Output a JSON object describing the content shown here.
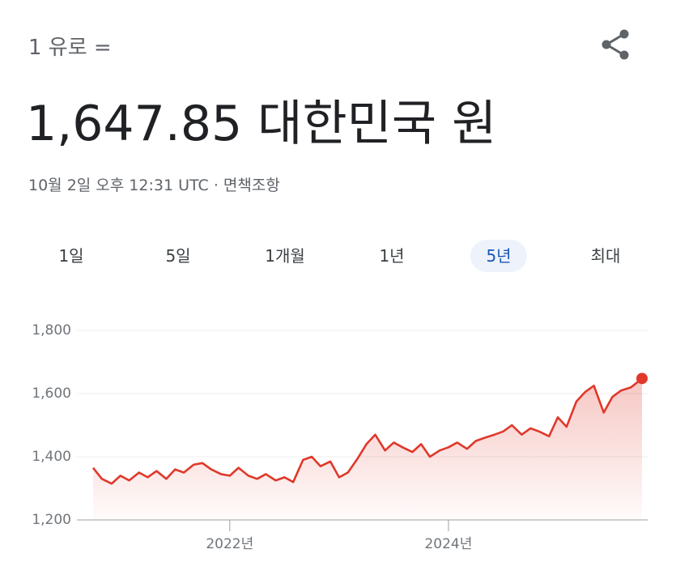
{
  "header": {
    "prefix": "1 유로 =",
    "value": "1,647.85 대한민국 원",
    "timestamp": "10월 2일 오후 12:31 UTC",
    "separator": "·",
    "disclaimer": "면책조항"
  },
  "tabs": [
    "1일",
    "5일",
    "1개월",
    "1년",
    "5년",
    "최대"
  ],
  "active_tab": 4,
  "chart_data": {
    "type": "line",
    "color": "#e0382b",
    "grid": true,
    "x": [
      2020.75,
      2020.83,
      2020.92,
      2021.0,
      2021.08,
      2021.17,
      2021.25,
      2021.33,
      2021.42,
      2021.5,
      2021.58,
      2021.67,
      2021.75,
      2021.83,
      2021.92,
      2022.0,
      2022.08,
      2022.17,
      2022.25,
      2022.33,
      2022.42,
      2022.5,
      2022.58,
      2022.67,
      2022.75,
      2022.83,
      2022.92,
      2023.0,
      2023.08,
      2023.17,
      2023.25,
      2023.33,
      2023.42,
      2023.5,
      2023.58,
      2023.67,
      2023.75,
      2023.83,
      2023.92,
      2024.0,
      2024.08,
      2024.17,
      2024.25,
      2024.33,
      2024.42,
      2024.5,
      2024.58,
      2024.67,
      2024.75,
      2024.83,
      2024.92,
      2025.0,
      2025.08,
      2025.17,
      2025.25,
      2025.33,
      2025.42,
      2025.5,
      2025.58,
      2025.67,
      2025.77
    ],
    "values": [
      1365,
      1330,
      1315,
      1340,
      1325,
      1350,
      1335,
      1355,
      1330,
      1360,
      1350,
      1375,
      1380,
      1360,
      1345,
      1340,
      1365,
      1340,
      1330,
      1345,
      1325,
      1335,
      1320,
      1390,
      1400,
      1370,
      1385,
      1335,
      1350,
      1395,
      1440,
      1470,
      1420,
      1445,
      1430,
      1415,
      1440,
      1400,
      1420,
      1430,
      1445,
      1425,
      1450,
      1460,
      1470,
      1480,
      1500,
      1470,
      1490,
      1480,
      1465,
      1525,
      1495,
      1575,
      1605,
      1625,
      1540,
      1590,
      1610,
      1620,
      1647.85
    ],
    "xlim": [
      2020.75,
      2025.77
    ],
    "xticks": [
      {
        "value": 2022,
        "label": "2022년"
      },
      {
        "value": 2024,
        "label": "2024년"
      }
    ],
    "ylim": [
      1200,
      1800
    ],
    "yticks": [
      {
        "value": 1200,
        "label": "1,200"
      },
      {
        "value": 1400,
        "label": "1,400"
      },
      {
        "value": 1600,
        "label": "1,600"
      },
      {
        "value": 1800,
        "label": "1,800"
      }
    ]
  }
}
